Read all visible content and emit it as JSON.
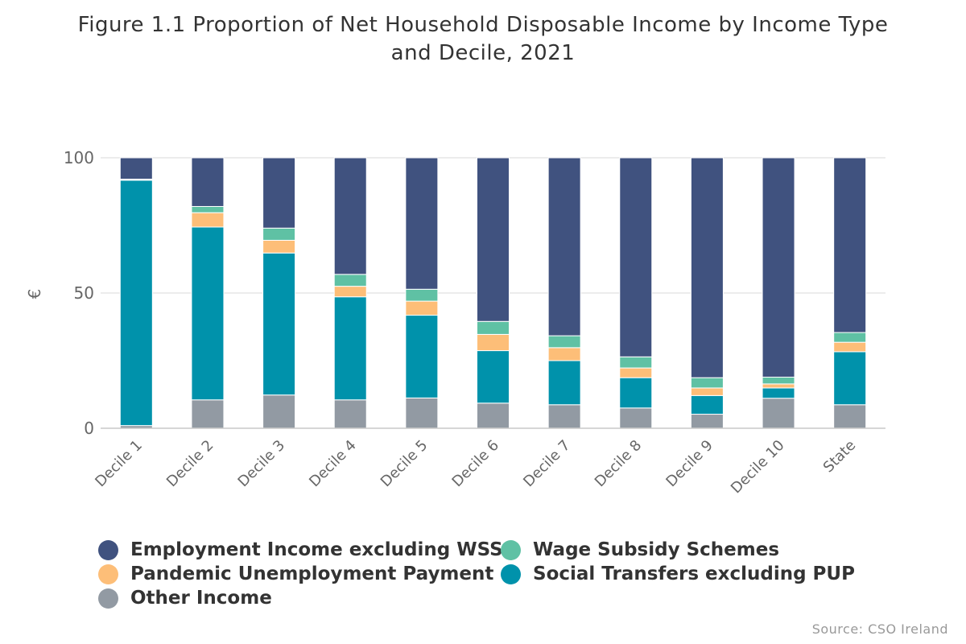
{
  "chart_data": {
    "type": "bar",
    "stacked": true,
    "title_lines": [
      "Figure 1.1 Proportion of Net Household Disposable Income by Income Type",
      "and Decile, 2021"
    ],
    "ylabel": "€",
    "ylim": [
      0,
      100
    ],
    "yticks": [
      "0",
      "50",
      "100"
    ],
    "grid": true,
    "legend_position": "bottom",
    "source": "Source: CSO Ireland",
    "categories": [
      "Decile 1",
      "Decile 2",
      "Decile 3",
      "Decile 4",
      "Decile 5",
      "Decile 6",
      "Decile 7",
      "Decile 8",
      "Decile 9",
      "Decile 10",
      "State"
    ],
    "series": [
      {
        "name": "Other Income",
        "color": "#929aa3",
        "values": [
          1,
          10.5,
          12.3,
          10.5,
          11.2,
          9.3,
          8.7,
          7.5,
          5.2,
          11.1,
          8.7
        ]
      },
      {
        "name": "Social Transfers excluding PUP",
        "color": "#0092ab",
        "values": [
          90.7,
          63.9,
          52.5,
          38.1,
          30.6,
          19.4,
          16.3,
          11.2,
          6.9,
          3.8,
          19.6
        ]
      },
      {
        "name": "Pandemic Unemployment Payment",
        "color": "#fdbe78",
        "values": [
          0.3,
          5.3,
          4.7,
          3.9,
          5.2,
          6.0,
          4.8,
          3.6,
          2.8,
          1.5,
          3.5
        ]
      },
      {
        "name": "Wage Subsidy Schemes",
        "color": "#5fc1a4",
        "values": [
          0.1,
          2.3,
          4.5,
          4.4,
          4.4,
          4.8,
          4.4,
          4.1,
          3.8,
          2.5,
          3.6
        ]
      },
      {
        "name": "Employment Income excluding WSS",
        "color": "#40527f",
        "values": [
          7.9,
          18.0,
          26.0,
          43.1,
          48.6,
          60.5,
          65.8,
          73.6,
          81.3,
          81.1,
          64.6
        ]
      }
    ]
  },
  "legend_order": [
    4,
    3,
    2,
    1,
    0
  ]
}
